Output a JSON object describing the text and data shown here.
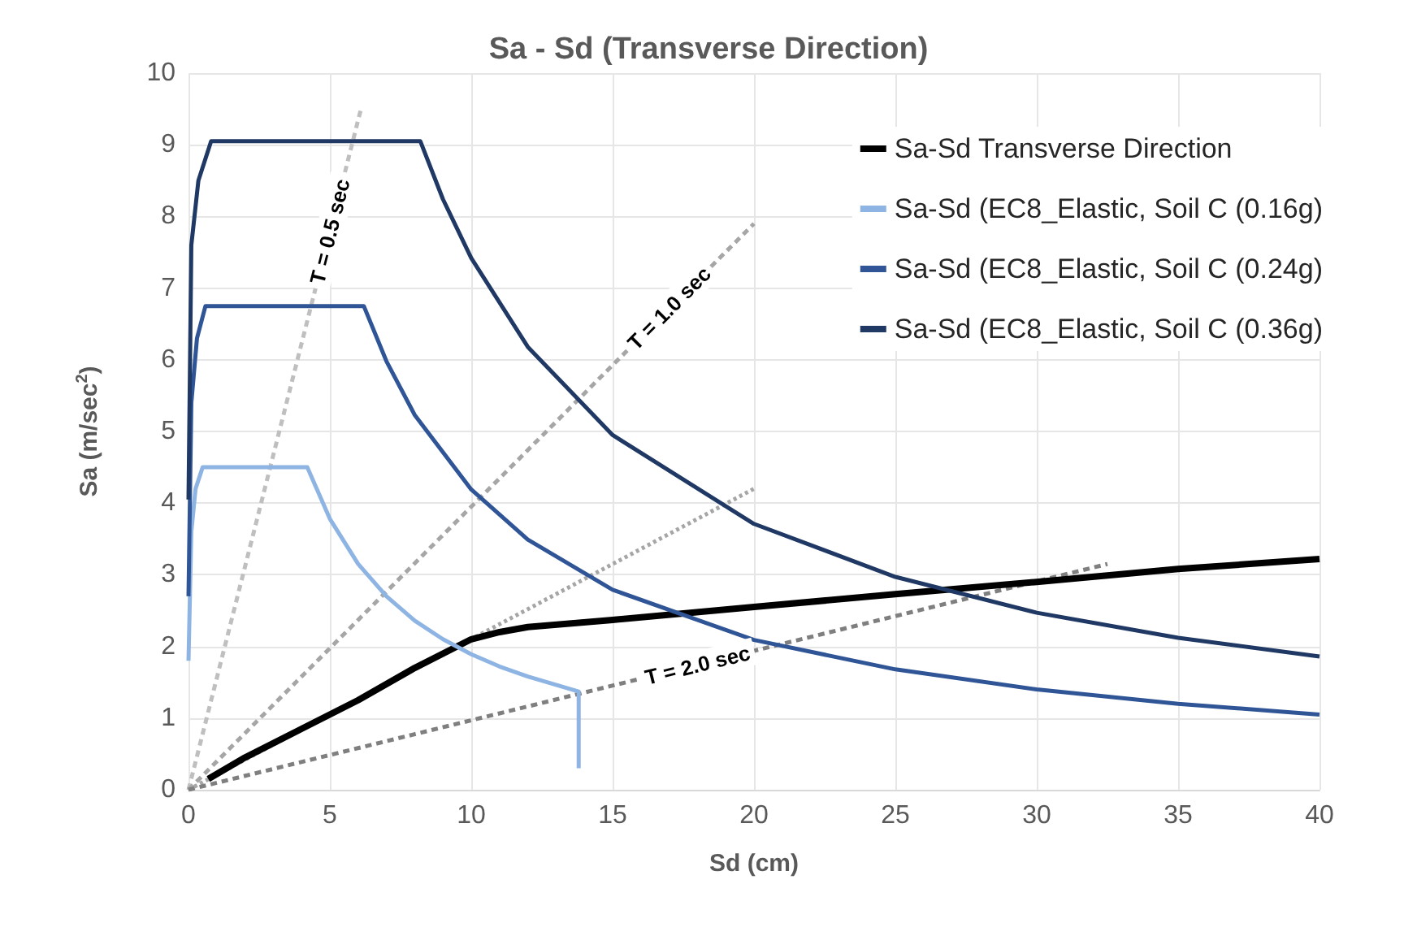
{
  "chart_data": {
    "type": "line",
    "title": "Sa - Sd (Transverse Direction)",
    "xlabel": "Sd (cm)",
    "ylabel": "Sa (m/sec$^{2}$)",
    "xlim": [
      0,
      40
    ],
    "xticks": [
      0,
      5,
      10,
      15,
      20,
      25,
      30,
      35,
      40
    ],
    "ylim": [
      0,
      10
    ],
    "yticks": [
      0,
      1,
      2,
      3,
      4,
      5,
      6,
      7,
      8,
      9,
      10
    ],
    "grid": true,
    "legend": "top right",
    "marker": "none",
    "series": [
      {
        "name": "Sa-Sd Transverse Direction",
        "color": "#000000",
        "x": [
          0.7,
          2,
          4,
          6,
          8,
          10,
          11,
          12,
          15,
          20,
          25,
          30,
          35,
          40
        ],
        "values": [
          0.15,
          0.45,
          0.85,
          1.25,
          1.7,
          2.1,
          2.2,
          2.27,
          2.37,
          2.55,
          2.73,
          2.9,
          3.08,
          3.22
        ]
      },
      {
        "name": "Sa-Sd (EC8_Elastic, Soil C (0.16g)",
        "color": "#8eb4e3",
        "x": [
          0,
          0.1,
          0.25,
          0.5,
          4.2,
          5,
          6,
          7,
          8,
          9,
          10,
          11,
          12,
          13.8,
          13.8
        ],
        "values": [
          1.8,
          3.6,
          4.2,
          4.5,
          4.5,
          3.78,
          3.15,
          2.7,
          2.36,
          2.1,
          1.89,
          1.72,
          1.58,
          1.37,
          0.3
        ]
      },
      {
        "name": "Sa-Sd (EC8_Elastic, Soil C (0.24g)",
        "color": "#2f5597",
        "x": [
          0,
          0.1,
          0.3,
          0.6,
          6.2,
          7,
          8,
          10,
          12,
          15,
          20,
          25,
          30,
          35,
          40
        ],
        "values": [
          2.7,
          5.4,
          6.3,
          6.75,
          6.75,
          5.98,
          5.23,
          4.19,
          3.49,
          2.79,
          2.09,
          1.68,
          1.4,
          1.2,
          1.05
        ]
      },
      {
        "name": "Sa-Sd (EC8_Elastic, Soil C (0.36g)",
        "color": "#1f3864",
        "x": [
          0,
          0.1,
          0.35,
          0.8,
          8.2,
          9,
          10,
          12,
          15,
          20,
          25,
          30,
          35,
          40
        ],
        "values": [
          4.05,
          7.6,
          8.5,
          9.05,
          9.05,
          8.24,
          7.42,
          6.18,
          4.95,
          3.71,
          2.97,
          2.47,
          2.12,
          1.86
        ]
      },
      {
        "color": "#a6a6a6",
        "line_style": "dotted",
        "x": [
          0,
          20
        ],
        "values": [
          0,
          4.2
        ]
      },
      {
        "color": "#bfbfbf",
        "line_style": "dashed",
        "x": [
          0,
          6.1
        ],
        "values": [
          0,
          9.5
        ]
      },
      {
        "color": "#a6a6a6",
        "line_style": "dashed",
        "x": [
          0,
          20
        ],
        "values": [
          0,
          7.9
        ]
      },
      {
        "color": "#7f7f7f",
        "line_style": "dashed",
        "x": [
          0,
          32.5
        ],
        "values": [
          0,
          3.15
        ]
      }
    ],
    "annotations": [
      {
        "text": "T = 0.5 sec",
        "x": 5,
        "y": 7.79
      },
      {
        "text": "T = 1.0 sec",
        "x": 17,
        "y": 6.72
      },
      {
        "text": "T = 2.0 sec",
        "x": 18,
        "y": 1.74
      }
    ]
  }
}
